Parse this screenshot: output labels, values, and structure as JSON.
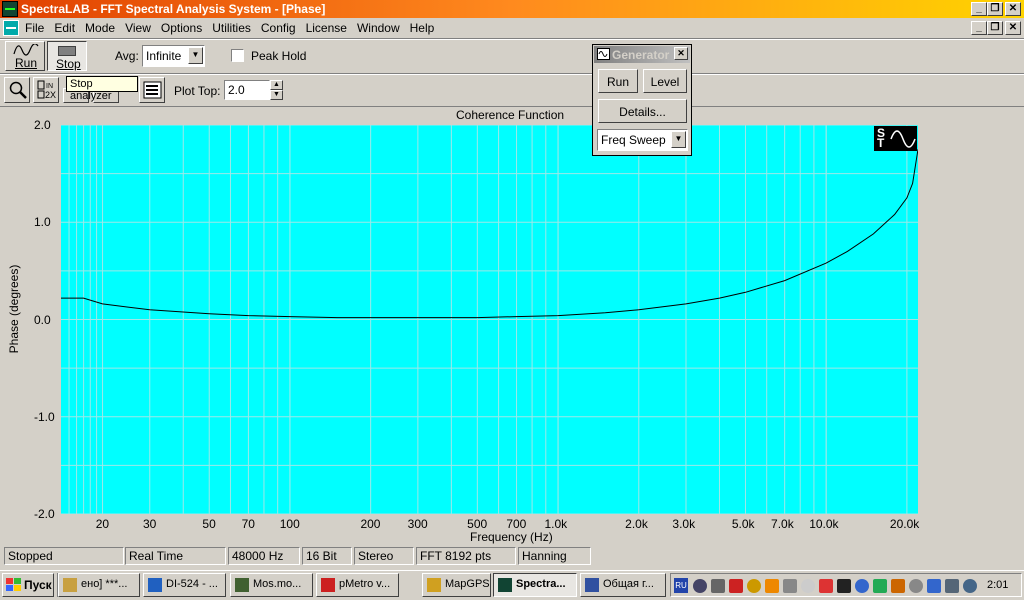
{
  "app": {
    "title": "SpectraLAB - FFT Spectral Analysis System - [Phase]"
  },
  "menu": [
    "File",
    "Edit",
    "Mode",
    "View",
    "Options",
    "Utilities",
    "Config",
    "License",
    "Window",
    "Help"
  ],
  "toolbar": {
    "run_label": "Run",
    "stop_label": "Stop",
    "avg_label": "Avg:",
    "avg_value": "Infinite",
    "peak_hold_label": "Peak Hold"
  },
  "toolbar2": {
    "tooltip": "Stop analyzer",
    "plot_top_label": "Plot Top:",
    "plot_top_value": "2.0"
  },
  "generator": {
    "title": "Generator",
    "run_label": "Run",
    "level_label": "Level",
    "details_label": "Details...",
    "mode_value": "Freq Sweep"
  },
  "plot": {
    "title": "Coherence Function",
    "ylabel": "Phase (degrees)",
    "xlabel": "Frequency (Hz)",
    "y_ticks": [
      "2.0",
      "1.0",
      "0.0",
      "-1.0",
      "-2.0"
    ],
    "x_ticks": [
      "20",
      "30",
      "50",
      "70",
      "100",
      "200",
      "300",
      "500",
      "700",
      "1.0k",
      "2.0k",
      "3.0k",
      "5.0k",
      "7.0k",
      "10.0k",
      "20.0k"
    ],
    "logo": "ST"
  },
  "chart_data": {
    "type": "line",
    "title": "Coherence Function",
    "xlabel": "Frequency (Hz)",
    "ylabel": "Phase (degrees)",
    "xscale": "log",
    "xlim": [
      14,
      22000
    ],
    "ylim": [
      -2.0,
      2.0
    ],
    "grid": true,
    "series": [
      {
        "x": [
          14,
          17,
          20,
          30,
          50,
          70,
          100,
          150,
          200,
          300,
          500,
          700,
          1000,
          1500,
          2000,
          3000,
          4000,
          5000,
          7000,
          10000,
          12000,
          15000,
          18000,
          20000,
          21000,
          22000
        ],
        "y": [
          0.22,
          0.22,
          0.16,
          0.1,
          0.06,
          0.04,
          0.03,
          0.02,
          0.02,
          0.02,
          0.02,
          0.03,
          0.04,
          0.07,
          0.1,
          0.16,
          0.22,
          0.28,
          0.4,
          0.58,
          0.7,
          0.88,
          1.08,
          1.25,
          1.4,
          1.75
        ]
      }
    ],
    "colors": {
      "background": "#00ffff",
      "line": "#000000",
      "grid": "#9ee8e8"
    }
  },
  "status": [
    "Stopped",
    "Real Time",
    "48000 Hz",
    "16 Bit",
    "Stereo",
    "FFT 8192 pts",
    "Hanning"
  ],
  "taskbar": {
    "start_label": "Пуск",
    "tasks": [
      "ено] ***...",
      "DI-524 - ...",
      "Mos.mo...",
      "pMetro v...",
      "MapGPS ...",
      "Spectra...",
      "Общая г..."
    ],
    "clock": "2:01",
    "lang": "RU"
  }
}
